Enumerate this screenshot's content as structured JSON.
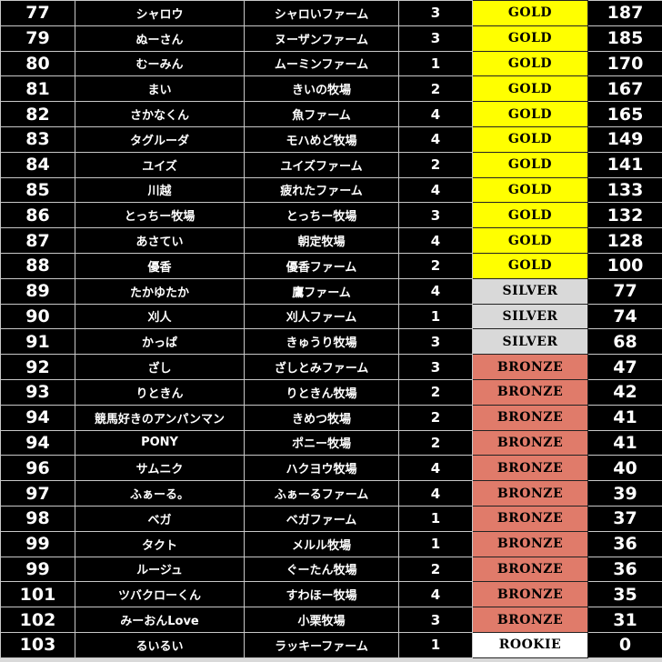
{
  "tier_colors": {
    "GOLD": "#ffff00",
    "SILVER": "#d9d9d9",
    "BRONZE": "#e07b6a",
    "ROOKIE": "#ffffff"
  },
  "rows": [
    {
      "rank": "77",
      "name": "シャロウ",
      "farm": "シャロいファーム",
      "num": "3",
      "tier": "GOLD",
      "points": "187"
    },
    {
      "rank": "79",
      "name": "ぬーさん",
      "farm": "ヌーザンファーム",
      "num": "3",
      "tier": "GOLD",
      "points": "185"
    },
    {
      "rank": "80",
      "name": "むーみん",
      "farm": "ムーミンファーム",
      "num": "1",
      "tier": "GOLD",
      "points": "170"
    },
    {
      "rank": "81",
      "name": "まい",
      "farm": "きいの牧場",
      "num": "2",
      "tier": "GOLD",
      "points": "167"
    },
    {
      "rank": "82",
      "name": "さかなくん",
      "farm": "魚ファーム",
      "num": "4",
      "tier": "GOLD",
      "points": "165"
    },
    {
      "rank": "83",
      "name": "タグルーダ",
      "farm": "モハめど牧場",
      "num": "4",
      "tier": "GOLD",
      "points": "149"
    },
    {
      "rank": "84",
      "name": "ユイズ",
      "farm": "ユイズファーム",
      "num": "2",
      "tier": "GOLD",
      "points": "141"
    },
    {
      "rank": "85",
      "name": "川越",
      "farm": "疲れたファーム",
      "num": "4",
      "tier": "GOLD",
      "points": "133"
    },
    {
      "rank": "86",
      "name": "とっちー牧場",
      "farm": "とっちー牧場",
      "num": "3",
      "tier": "GOLD",
      "points": "132"
    },
    {
      "rank": "87",
      "name": "あさてい",
      "farm": "朝定牧場",
      "num": "4",
      "tier": "GOLD",
      "points": "128"
    },
    {
      "rank": "88",
      "name": "優香",
      "farm": "優香ファーム",
      "num": "2",
      "tier": "GOLD",
      "points": "100"
    },
    {
      "rank": "89",
      "name": "たかゆたか",
      "farm": "鷹ファーム",
      "num": "4",
      "tier": "SILVER",
      "points": "77"
    },
    {
      "rank": "90",
      "name": "刈人",
      "farm": "刈人ファーム",
      "num": "1",
      "tier": "SILVER",
      "points": "74"
    },
    {
      "rank": "91",
      "name": "かっぱ",
      "farm": "きゅうり牧場",
      "num": "3",
      "tier": "SILVER",
      "points": "68"
    },
    {
      "rank": "92",
      "name": "ざし",
      "farm": "ざしとみファーム",
      "num": "3",
      "tier": "BRONZE",
      "points": "47"
    },
    {
      "rank": "93",
      "name": "りときん",
      "farm": "りときん牧場",
      "num": "2",
      "tier": "BRONZE",
      "points": "42"
    },
    {
      "rank": "94",
      "name": "競馬好きのアンパンマン",
      "farm": "きめつ牧場",
      "num": "2",
      "tier": "BRONZE",
      "points": "41"
    },
    {
      "rank": "94",
      "name": "PONY",
      "farm": "ポニー牧場",
      "num": "2",
      "tier": "BRONZE",
      "points": "41"
    },
    {
      "rank": "96",
      "name": "サムニク",
      "farm": "ハクヨウ牧場",
      "num": "4",
      "tier": "BRONZE",
      "points": "40"
    },
    {
      "rank": "97",
      "name": "ふぁーる。",
      "farm": "ふぁーるファーム",
      "num": "4",
      "tier": "BRONZE",
      "points": "39"
    },
    {
      "rank": "98",
      "name": "ベガ",
      "farm": "ベガファーム",
      "num": "1",
      "tier": "BRONZE",
      "points": "37"
    },
    {
      "rank": "99",
      "name": "タクト",
      "farm": "メルル牧場",
      "num": "1",
      "tier": "BRONZE",
      "points": "36"
    },
    {
      "rank": "99",
      "name": "ルージュ",
      "farm": "ぐーたん牧場",
      "num": "2",
      "tier": "BRONZE",
      "points": "36"
    },
    {
      "rank": "101",
      "name": "ツバクローくん",
      "farm": "すわほー牧場",
      "num": "4",
      "tier": "BRONZE",
      "points": "35"
    },
    {
      "rank": "102",
      "name": "みーおんLove",
      "farm": "小栗牧場",
      "num": "3",
      "tier": "BRONZE",
      "points": "31"
    },
    {
      "rank": "103",
      "name": "るいるい",
      "farm": "ラッキーファーム",
      "num": "1",
      "tier": "ROOKIE",
      "points": "0"
    }
  ]
}
